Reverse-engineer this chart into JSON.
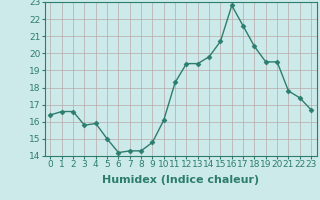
{
  "x": [
    0,
    1,
    2,
    3,
    4,
    5,
    6,
    7,
    8,
    9,
    10,
    11,
    12,
    13,
    14,
    15,
    16,
    17,
    18,
    19,
    20,
    21,
    22,
    23
  ],
  "y": [
    16.4,
    16.6,
    16.6,
    15.8,
    15.9,
    15.0,
    14.2,
    14.3,
    14.3,
    14.8,
    16.1,
    18.3,
    19.4,
    19.4,
    19.8,
    20.7,
    22.8,
    21.6,
    20.4,
    19.5,
    19.5,
    17.8,
    17.4,
    16.7
  ],
  "line_color": "#2d7d6e",
  "marker": "D",
  "marker_size": 2.5,
  "bg_color": "#cdeaea",
  "grid_color": "#b8a8a8",
  "xlabel": "Humidex (Indice chaleur)",
  "ylim": [
    14,
    23
  ],
  "xlim": [
    -0.5,
    23.5
  ],
  "yticks": [
    14,
    15,
    16,
    17,
    18,
    19,
    20,
    21,
    22,
    23
  ],
  "xticks": [
    0,
    1,
    2,
    3,
    4,
    5,
    6,
    7,
    8,
    9,
    10,
    11,
    12,
    13,
    14,
    15,
    16,
    17,
    18,
    19,
    20,
    21,
    22,
    23
  ],
  "tick_fontsize": 6.5,
  "xlabel_fontsize": 8,
  "linewidth": 1.0
}
